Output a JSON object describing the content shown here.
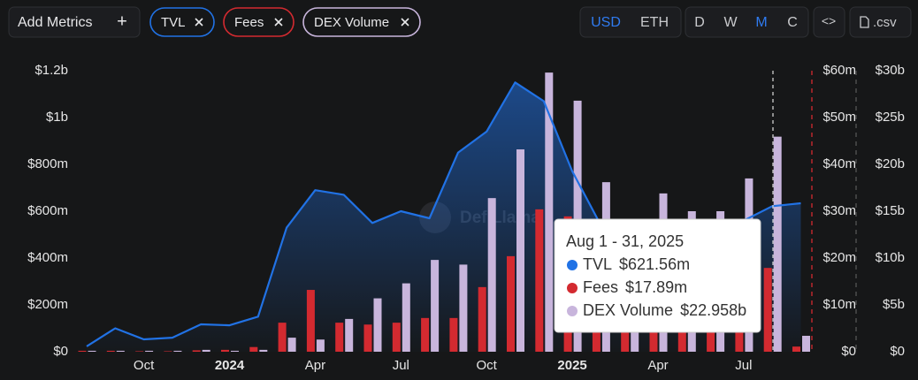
{
  "controls": {
    "add_metrics": "Add Metrics",
    "add_icon": "+",
    "currencies": [
      "USD",
      "ETH"
    ],
    "active_currency": "USD",
    "periods": [
      "D",
      "W",
      "M",
      "C"
    ],
    "active_period": "M",
    "embed": "<>",
    "csv": ".csv"
  },
  "chart_data": {
    "type": "combo",
    "watermark": "DefiLlama",
    "categories": [
      null,
      null,
      "Oct",
      null,
      null,
      "2024",
      null,
      null,
      "Apr",
      null,
      null,
      "Jul",
      null,
      null,
      "Oct",
      null,
      null,
      "2025",
      null,
      null,
      "Apr",
      null,
      null,
      "Jul",
      null,
      null
    ],
    "bold_categories": [
      "2024",
      "2025"
    ],
    "series": [
      {
        "name": "TVL",
        "kind": "area",
        "color": "#2172e5",
        "axis": "y",
        "values": [
          23,
          100,
          53,
          60,
          117,
          113,
          150,
          530,
          690,
          670,
          550,
          600,
          570,
          850,
          940,
          1150,
          1070,
          770,
          540,
          500,
          490,
          500,
          510,
          560,
          621.56,
          634
        ]
      },
      {
        "name": "Fees",
        "kind": "bar",
        "color": "#d32a30",
        "axis": "y2",
        "values": [
          0.2,
          0.2,
          0.1,
          0.1,
          0.3,
          0.4,
          1,
          6.2,
          13.2,
          6.2,
          5.8,
          6.2,
          7.2,
          7.2,
          13.8,
          20.4,
          30.4,
          28.9,
          12,
          8,
          7,
          6,
          6,
          7,
          17.89,
          1.1
        ]
      },
      {
        "name": "DEX Volume",
        "kind": "bar",
        "color": "#c8b5dc",
        "axis": "y3",
        "values": [
          0.1,
          0.1,
          0.1,
          0.1,
          0.2,
          0.1,
          0.2,
          1.5,
          1.3,
          3.5,
          5.7,
          7.3,
          9.8,
          9.3,
          16.4,
          21.6,
          29.8,
          26.8,
          18.1,
          14,
          16.9,
          15,
          15,
          18.5,
          22.958,
          1.7
        ]
      }
    ],
    "ylim": [
      0,
      1200
    ],
    "yticks": [
      {
        "value": 0,
        "label": "$0"
      },
      {
        "value": 200,
        "label": "$200m"
      },
      {
        "value": 400,
        "label": "$400m"
      },
      {
        "value": 600,
        "label": "$600m"
      },
      {
        "value": 800,
        "label": "$800m"
      },
      {
        "value": 1000,
        "label": "$1b"
      },
      {
        "value": 1200,
        "label": "$1.2b"
      }
    ],
    "y2lim": [
      0,
      60
    ],
    "y2ticks": [
      {
        "value": 0,
        "label": "$0"
      },
      {
        "value": 10,
        "label": "$10m"
      },
      {
        "value": 20,
        "label": "$20m"
      },
      {
        "value": 30,
        "label": "$30m"
      },
      {
        "value": 40,
        "label": "$40m"
      },
      {
        "value": 50,
        "label": "$50m"
      },
      {
        "value": 60,
        "label": "$60m"
      }
    ],
    "y3lim": [
      0,
      30
    ],
    "y3ticks": [
      {
        "value": 0,
        "label": "$0"
      },
      {
        "value": 5,
        "label": "$5b"
      },
      {
        "value": 10,
        "label": "$10b"
      },
      {
        "value": 15,
        "label": "$15b"
      },
      {
        "value": 20,
        "label": "$20b"
      },
      {
        "value": 25,
        "label": "$25b"
      },
      {
        "value": 30,
        "label": "$30b"
      }
    ],
    "tooltip": {
      "title": "Aug 1 - 31, 2025",
      "items": [
        {
          "name": "TVL",
          "value": "$621.56m",
          "color": "#2172e5"
        },
        {
          "name": "Fees",
          "value": "$17.89m",
          "color": "#d32a30"
        },
        {
          "name": "DEX Volume",
          "value": "$22.958b",
          "color": "#c8b5dc"
        }
      ]
    }
  }
}
